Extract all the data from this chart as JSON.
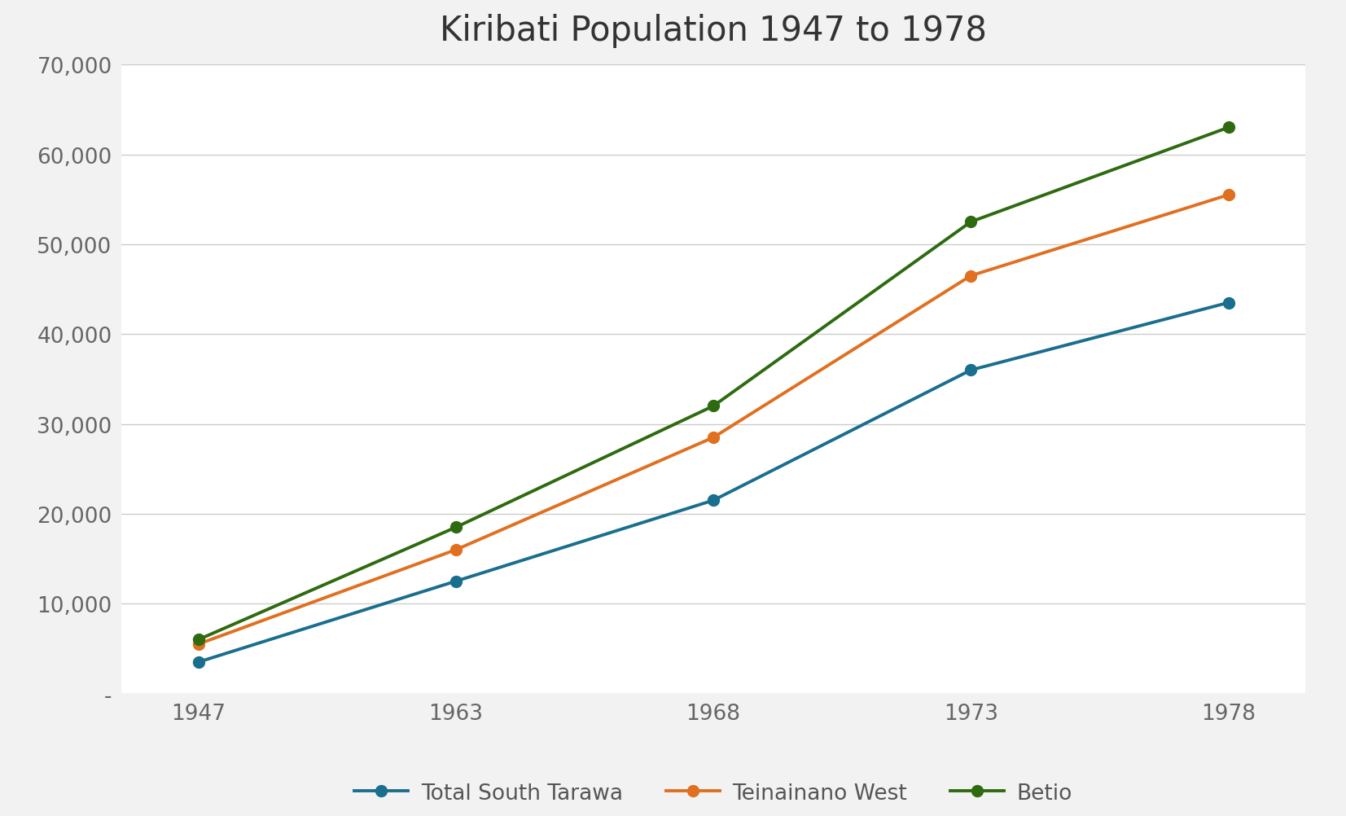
{
  "title": "Kiribati Population 1947 to 1978",
  "years": [
    "1947",
    "1963",
    "1968",
    "1973",
    "1978"
  ],
  "series": [
    {
      "label": "Total South Tarawa",
      "color": "#1a6e8e",
      "marker": "o",
      "values": [
        3500,
        12500,
        21500,
        36000,
        43500
      ]
    },
    {
      "label": "Teinainano West",
      "color": "#e07020",
      "marker": "o",
      "values": [
        5500,
        16000,
        28500,
        46500,
        55500
      ]
    },
    {
      "label": "Betio",
      "color": "#2e6b10",
      "marker": "o",
      "values": [
        6000,
        18500,
        32000,
        52500,
        63000
      ]
    }
  ],
  "ylim": [
    0,
    70000
  ],
  "yticks": [
    0,
    10000,
    20000,
    30000,
    40000,
    50000,
    60000,
    70000
  ],
  "ytick_labels": [
    "-",
    "10,000",
    "20,000",
    "30,000",
    "40,000",
    "50,000",
    "60,000",
    "70,000"
  ],
  "background_color": "#f2f2f2",
  "plot_bg_color": "#ffffff",
  "grid_color": "#cccccc",
  "title_fontsize": 30,
  "tick_fontsize": 19,
  "legend_fontsize": 19,
  "line_width": 2.8,
  "marker_size": 10
}
